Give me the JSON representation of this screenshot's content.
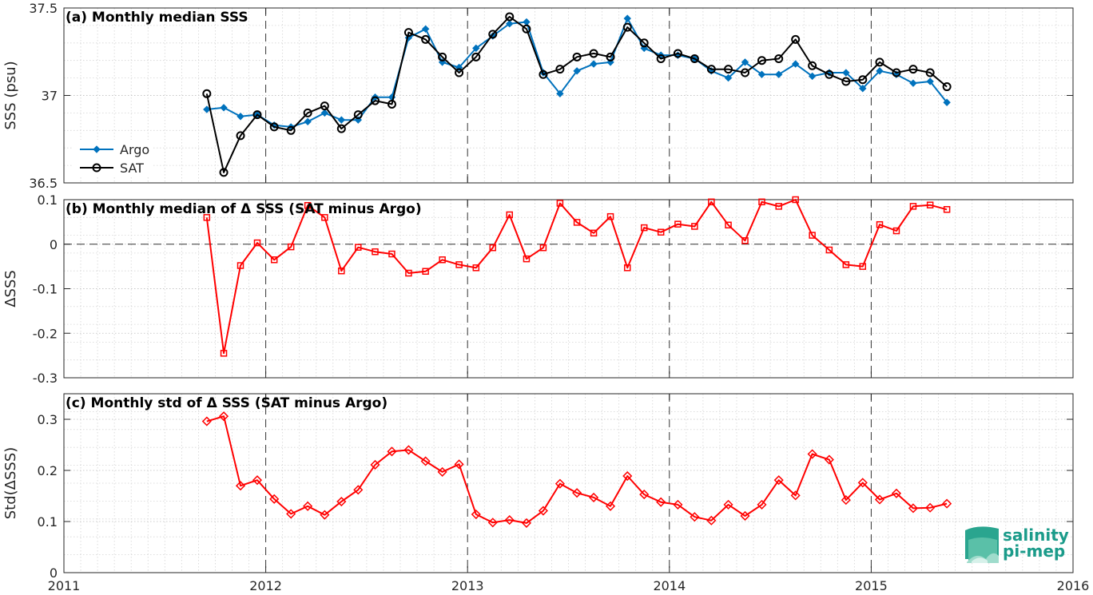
{
  "chart_data": [
    {
      "type": "line",
      "title": "(a) Monthly median SSS",
      "xlabel": "",
      "ylabel": "SSS (psu)",
      "xlim": [
        2011,
        2016
      ],
      "ylim": [
        36.5,
        37.5
      ],
      "yticks": [
        "37.5",
        "37",
        "36.5"
      ],
      "xticks": [],
      "grid": "dotted",
      "legend_position": "bottom-left",
      "x": [
        2011.708,
        2011.792,
        2011.875,
        2011.958,
        2012.042,
        2012.125,
        2012.208,
        2012.292,
        2012.375,
        2012.458,
        2012.542,
        2012.625,
        2012.708,
        2012.792,
        2012.875,
        2012.958,
        2013.042,
        2013.125,
        2013.208,
        2013.292,
        2013.375,
        2013.458,
        2013.542,
        2013.625,
        2013.708,
        2013.792,
        2013.875,
        2013.958,
        2014.042,
        2014.125,
        2014.208,
        2014.292,
        2014.375,
        2014.458,
        2014.542,
        2014.625,
        2014.708,
        2014.792,
        2014.875,
        2014.958,
        2015.042,
        2015.125,
        2015.208,
        2015.292,
        2015.375
      ],
      "series": [
        {
          "name": "Argo",
          "color": "#0072BD",
          "marker": "diamond",
          "values": [
            36.92,
            36.93,
            36.88,
            36.89,
            36.83,
            36.82,
            36.85,
            36.9,
            36.86,
            36.86,
            36.99,
            36.99,
            37.33,
            37.38,
            37.19,
            37.16,
            37.27,
            37.34,
            37.41,
            37.42,
            37.13,
            37.01,
            37.14,
            37.18,
            37.19,
            37.44,
            37.27,
            37.23,
            37.23,
            37.21,
            37.14,
            37.1,
            37.19,
            37.12,
            37.12,
            37.18,
            37.11,
            37.13,
            37.13,
            37.04,
            37.14,
            37.12,
            37.07,
            37.08,
            36.96
          ]
        },
        {
          "name": "SAT",
          "color": "#000000",
          "marker": "circle",
          "values": [
            37.01,
            36.56,
            36.77,
            36.89,
            36.82,
            36.8,
            36.9,
            36.94,
            36.81,
            36.89,
            36.97,
            36.95,
            37.36,
            37.32,
            37.22,
            37.13,
            37.22,
            37.35,
            37.45,
            37.38,
            37.12,
            37.15,
            37.22,
            37.24,
            37.22,
            37.39,
            37.3,
            37.21,
            37.24,
            37.21,
            37.15,
            37.15,
            37.13,
            37.2,
            37.21,
            37.32,
            37.17,
            37.12,
            37.08,
            37.09,
            37.19,
            37.13,
            37.15,
            37.13,
            37.05
          ]
        }
      ]
    },
    {
      "type": "line",
      "title": "(b) Monthly median of Δ SSS (SAT minus Argo)",
      "xlabel": "",
      "ylabel": "ΔSSS",
      "xlim": [
        2011,
        2016
      ],
      "ylim": [
        -0.3,
        0.1
      ],
      "yticks": [
        "0.1",
        "0",
        "-0.1",
        "-0.2",
        "-0.3"
      ],
      "xticks": [],
      "grid": "dotted",
      "reference_line": 0,
      "x": [
        2011.708,
        2011.792,
        2011.875,
        2011.958,
        2012.042,
        2012.125,
        2012.208,
        2012.292,
        2012.375,
        2012.458,
        2012.542,
        2012.625,
        2012.708,
        2012.792,
        2012.875,
        2012.958,
        2013.042,
        2013.125,
        2013.208,
        2013.292,
        2013.375,
        2013.458,
        2013.542,
        2013.625,
        2013.708,
        2013.792,
        2013.875,
        2013.958,
        2014.042,
        2014.125,
        2014.208,
        2014.292,
        2014.375,
        2014.458,
        2014.542,
        2014.625,
        2014.708,
        2014.792,
        2014.875,
        2014.958,
        2015.042,
        2015.125,
        2015.208,
        2015.292,
        2015.375
      ],
      "series": [
        {
          "name": "",
          "color": "#FF0000",
          "marker": "square",
          "values": [
            0.06,
            -0.245,
            -0.048,
            0.003,
            -0.035,
            -0.006,
            0.087,
            0.06,
            -0.06,
            -0.007,
            -0.017,
            -0.022,
            -0.065,
            -0.061,
            -0.035,
            -0.046,
            -0.053,
            -0.008,
            0.066,
            -0.033,
            -0.008,
            0.092,
            0.049,
            0.025,
            0.062,
            -0.053,
            0.037,
            0.027,
            0.045,
            0.04,
            0.095,
            0.043,
            0.008,
            0.095,
            0.085,
            0.1,
            0.02,
            -0.013,
            -0.046,
            -0.05,
            0.044,
            0.03,
            0.085,
            0.088,
            0.078
          ]
        }
      ]
    },
    {
      "type": "line",
      "title": "(c) Monthly std of Δ SSS (SAT minus Argo)",
      "xlabel": "",
      "ylabel": "Std(ΔSSS)",
      "xlim": [
        2011,
        2016
      ],
      "ylim": [
        0,
        0.35
      ],
      "yticks": [
        "0.3",
        "0.2",
        "0.1",
        "0"
      ],
      "xticks": [
        "2011",
        "2012",
        "2013",
        "2014",
        "2015",
        "2016"
      ],
      "grid": "dotted",
      "x": [
        2011.708,
        2011.792,
        2011.875,
        2011.958,
        2012.042,
        2012.125,
        2012.208,
        2012.292,
        2012.375,
        2012.458,
        2012.542,
        2012.625,
        2012.708,
        2012.792,
        2012.875,
        2012.958,
        2013.042,
        2013.125,
        2013.208,
        2013.292,
        2013.375,
        2013.458,
        2013.542,
        2013.625,
        2013.708,
        2013.792,
        2013.875,
        2013.958,
        2014.042,
        2014.125,
        2014.208,
        2014.292,
        2014.375,
        2014.458,
        2014.542,
        2014.625,
        2014.708,
        2014.792,
        2014.875,
        2014.958,
        2015.042,
        2015.125,
        2015.208,
        2015.292,
        2015.375
      ],
      "series": [
        {
          "name": "",
          "color": "#FF0000",
          "marker": "diamond",
          "values": [
            0.296,
            0.306,
            0.17,
            0.181,
            0.144,
            0.115,
            0.13,
            0.113,
            0.139,
            0.162,
            0.211,
            0.237,
            0.24,
            0.218,
            0.197,
            0.212,
            0.114,
            0.098,
            0.103,
            0.097,
            0.121,
            0.174,
            0.156,
            0.147,
            0.13,
            0.189,
            0.153,
            0.138,
            0.133,
            0.109,
            0.102,
            0.133,
            0.111,
            0.133,
            0.181,
            0.151,
            0.232,
            0.221,
            0.142,
            0.176,
            0.143,
            0.155,
            0.126,
            0.127,
            0.135
          ]
        }
      ]
    }
  ],
  "logo": {
    "line1": "salinity",
    "line2": "pi-mep",
    "color": "#1b9b8a"
  }
}
